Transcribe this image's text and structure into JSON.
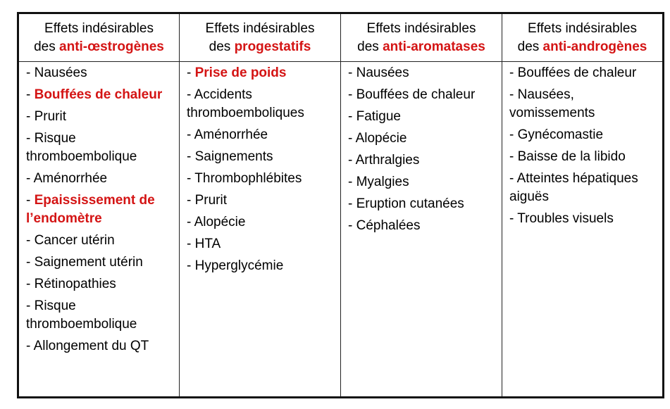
{
  "colors": {
    "accent": "#d41414"
  },
  "columns": [
    {
      "header": {
        "line1": "Effets indésirables",
        "prefix": "des ",
        "highlight": "anti-œstrogènes"
      },
      "items": [
        {
          "text": "Nausées",
          "emphasis": false
        },
        {
          "text": "Bouffées de chaleur",
          "emphasis": true
        },
        {
          "text": "Prurit",
          "emphasis": false
        },
        {
          "text": "Risque thromboembolique",
          "emphasis": false
        },
        {
          "text": "Aménorrhée",
          "emphasis": false
        },
        {
          "text": "Epaississement de l’endomètre",
          "emphasis": true
        },
        {
          "text": "Cancer utérin",
          "emphasis": false
        },
        {
          "text": "Saignement utérin",
          "emphasis": false
        },
        {
          "text": "Rétinopathies",
          "emphasis": false
        },
        {
          "text": "Risque thromboembolique",
          "emphasis": false
        },
        {
          "text": "Allongement du QT",
          "emphasis": false
        }
      ]
    },
    {
      "header": {
        "line1": "Effets indésirables",
        "prefix": "des ",
        "highlight": "progestatifs"
      },
      "items": [
        {
          "text": "Prise de poids",
          "emphasis": true
        },
        {
          "text": "Accidents thromboemboliques",
          "emphasis": false
        },
        {
          "text": "Aménorrhée",
          "emphasis": false
        },
        {
          "text": "Saignements",
          "emphasis": false
        },
        {
          "text": "Thrombophlébites",
          "emphasis": false
        },
        {
          "text": "Prurit",
          "emphasis": false
        },
        {
          "text": "Alopécie",
          "emphasis": false
        },
        {
          "text": "HTA",
          "emphasis": false
        },
        {
          "text": "Hyperglycémie",
          "emphasis": false
        }
      ]
    },
    {
      "header": {
        "line1": "Effets indésirables",
        "prefix": "des ",
        "highlight": "anti-aromatases"
      },
      "items": [
        {
          "text": "Nausées",
          "emphasis": false
        },
        {
          "text": "Bouffées de chaleur",
          "emphasis": false
        },
        {
          "text": "Fatigue",
          "emphasis": false
        },
        {
          "text": "Alopécie",
          "emphasis": false
        },
        {
          "text": "Arthralgies",
          "emphasis": false
        },
        {
          "text": "Myalgies",
          "emphasis": false
        },
        {
          "text": "Eruption cutanées",
          "emphasis": false
        },
        {
          "text": "Céphalées",
          "emphasis": false
        }
      ]
    },
    {
      "header": {
        "line1": "Effets indésirables",
        "prefix": "des ",
        "highlight": "anti-androgènes"
      },
      "items": [
        {
          "text": "Bouffées de chaleur",
          "emphasis": false
        },
        {
          "text": "Nausées, vomissements",
          "emphasis": false
        },
        {
          "text": "Gynécomastie",
          "emphasis": false
        },
        {
          "text": "Baisse de la libido",
          "emphasis": false
        },
        {
          "text": "Atteintes hépatiques aiguës",
          "emphasis": false
        },
        {
          "text": "Troubles visuels",
          "emphasis": false
        }
      ]
    }
  ]
}
